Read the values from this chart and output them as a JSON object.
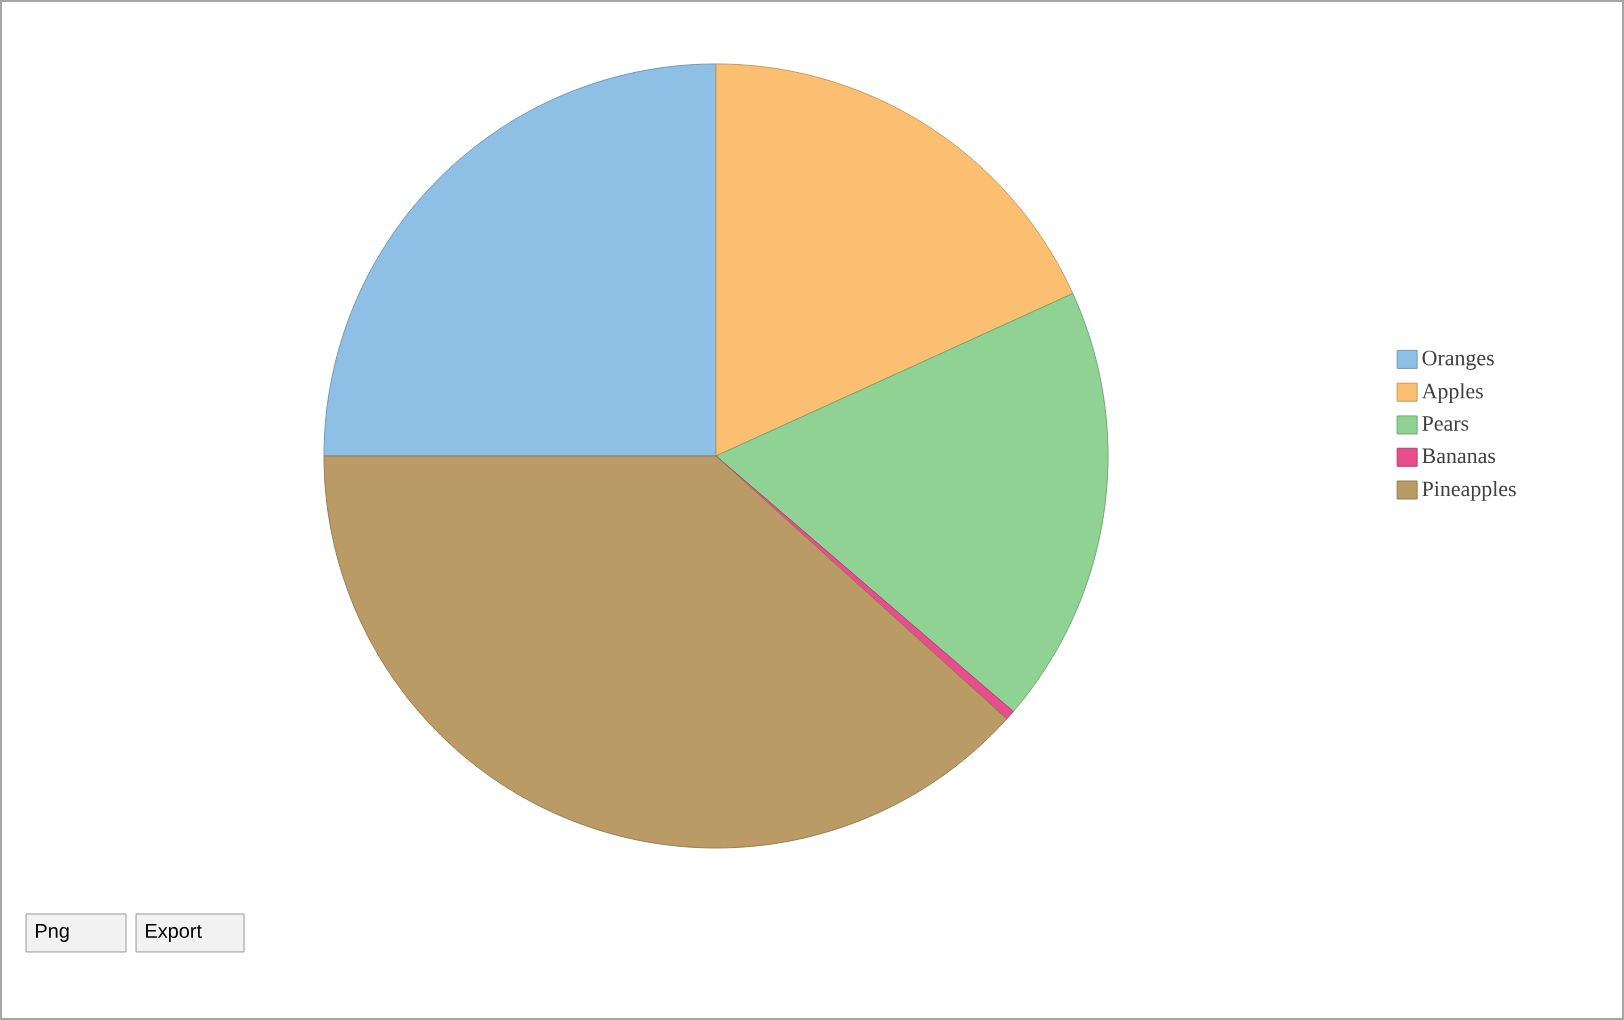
{
  "chart_data": {
    "type": "pie",
    "categories": [
      "Oranges",
      "Apples",
      "Pears",
      "Bananas",
      "Pineapples"
    ],
    "values": [
      25,
      18.2,
      18.1,
      0.4,
      38.3
    ],
    "colors": [
      "#8ebfe5",
      "#fbbf72",
      "#8fd293",
      "#e84d8e",
      "#bb9b65"
    ],
    "legend": "right",
    "annotations": [
      "Png",
      "Export"
    ]
  }
}
